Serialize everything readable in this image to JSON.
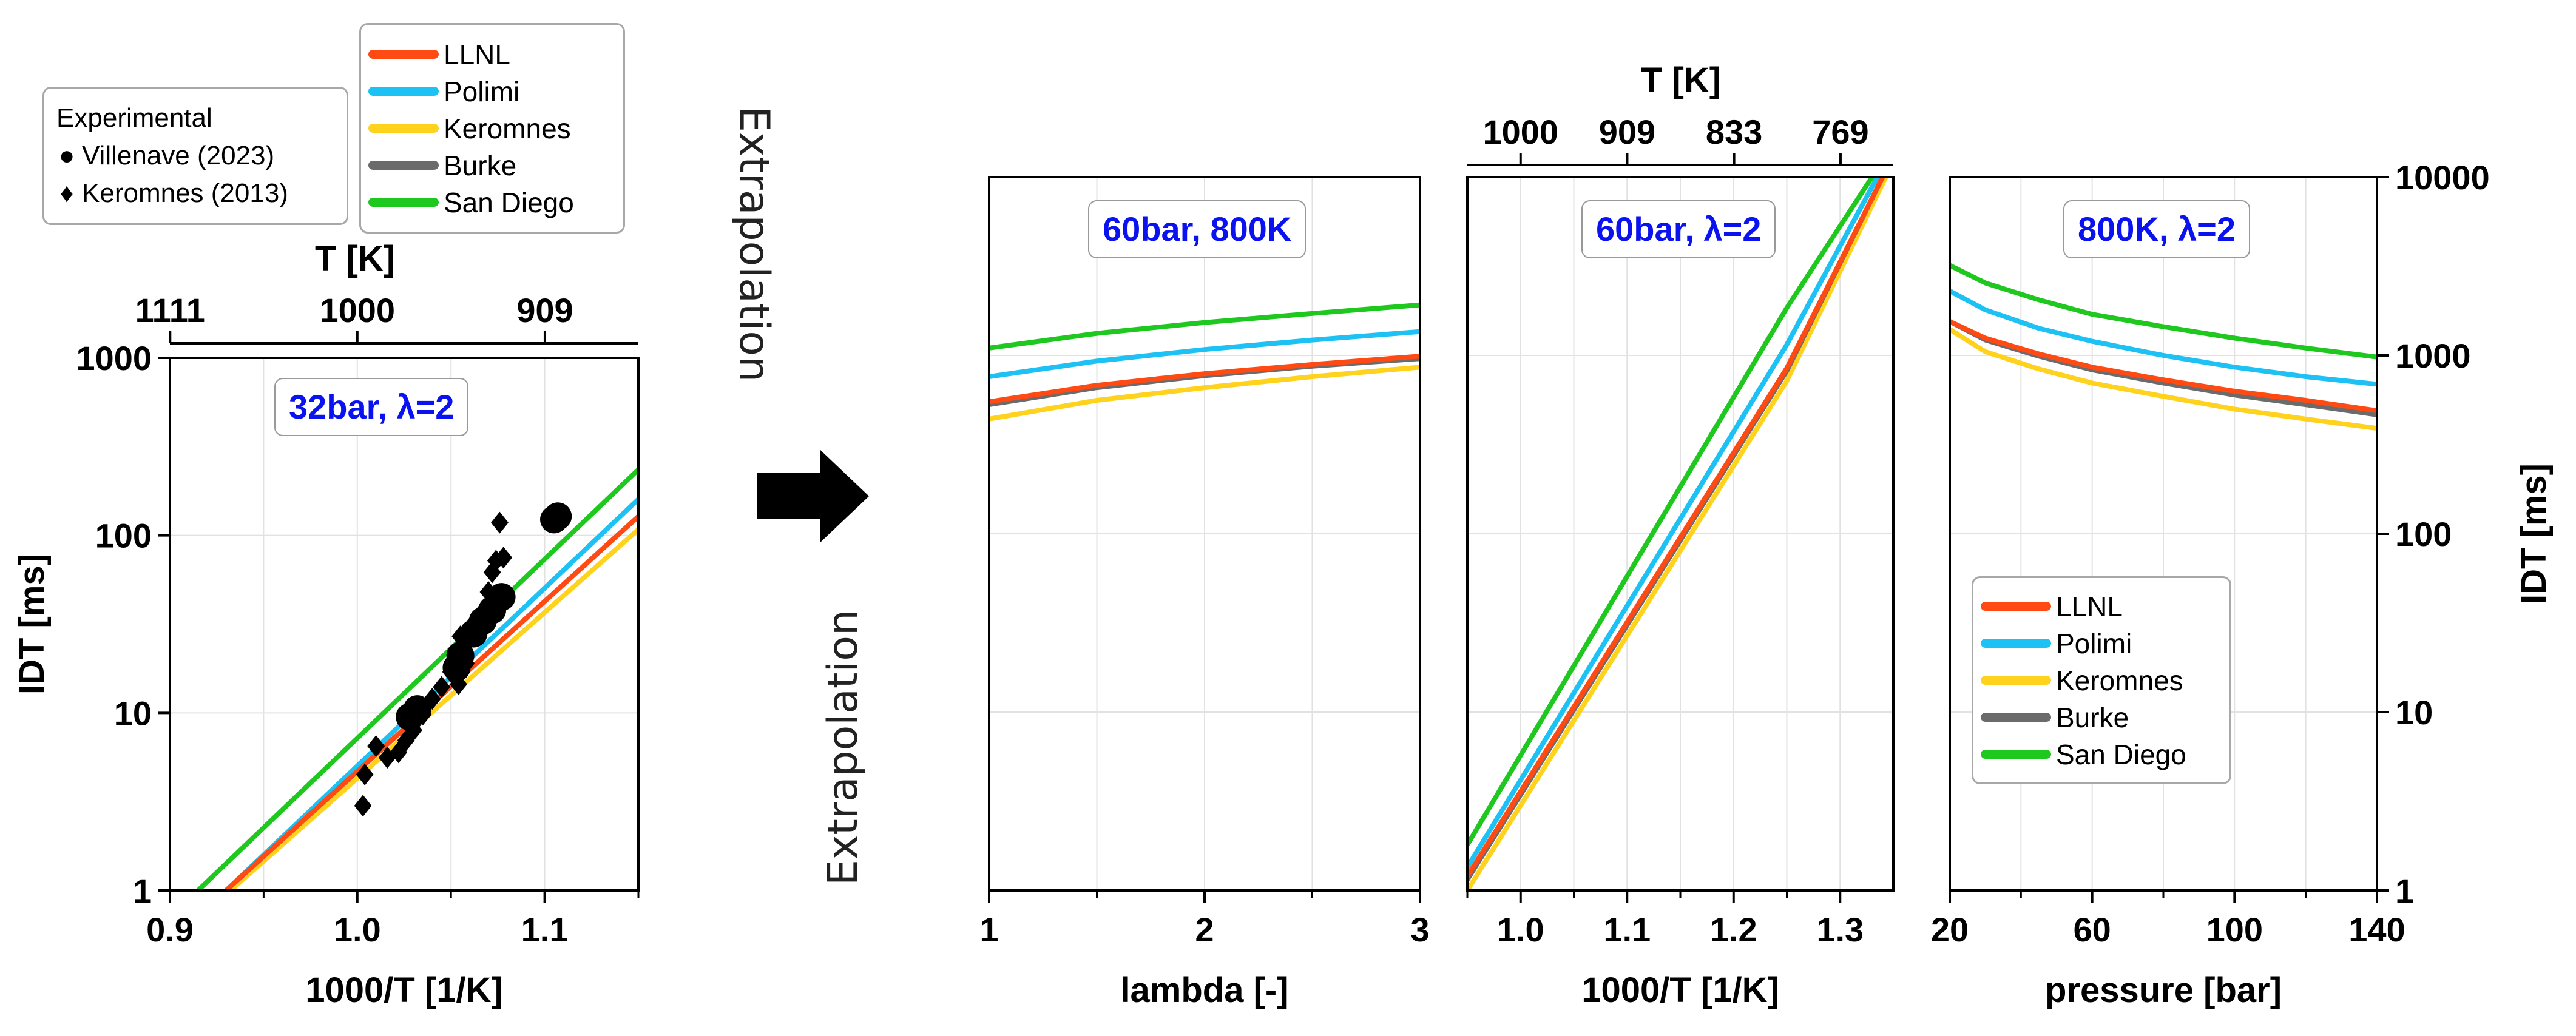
{
  "chart_data": [
    {
      "id": "left",
      "type": "line",
      "box_label": "32bar, λ=2",
      "xlabel": "1000/T [1/K]",
      "ylabel": "IDT  [ms]",
      "top_xlabel": "T [K]",
      "xlim": [
        0.9,
        1.15
      ],
      "ylim": [
        1,
        1000
      ],
      "yscale": "log",
      "xticks": [
        "0.9",
        "1.0",
        "1.1"
      ],
      "yticks": [
        "1",
        "10",
        "100",
        "1000"
      ],
      "top_ticks": [
        {
          "T": 1111,
          "label": "1111"
        },
        {
          "T": 1000,
          "label": "1000"
        },
        {
          "T": 909,
          "label": "909"
        }
      ],
      "series": [
        {
          "name": "LLNL",
          "x": [
            0.93,
            1.15
          ],
          "y": [
            1.0,
            128
          ]
        },
        {
          "name": "Polimi",
          "x": [
            0.93,
            1.15
          ],
          "y": [
            1.0,
            160
          ]
        },
        {
          "name": "Keromnes",
          "x": [
            0.93,
            1.15
          ],
          "y": [
            0.95,
            108
          ]
        },
        {
          "name": "Burke",
          "x": [
            0.93,
            1.15
          ],
          "y": [
            1.0,
            128
          ]
        },
        {
          "name": "San Diego",
          "x": [
            0.915,
            1.15
          ],
          "y": [
            1.0,
            235
          ]
        }
      ],
      "experimental": {
        "Villenave (2023)": [
          [
            1.028,
            9.5
          ],
          [
            1.032,
            10.5
          ],
          [
            1.053,
            18
          ],
          [
            1.055,
            21
          ],
          [
            1.062,
            28
          ],
          [
            1.067,
            33
          ],
          [
            1.072,
            38
          ],
          [
            1.077,
            45
          ],
          [
            1.105,
            123
          ],
          [
            1.107,
            128
          ]
        ],
        "Keromnes (2013)": [
          [
            1.003,
            3.0
          ],
          [
            1.004,
            4.5
          ],
          [
            1.01,
            6.5
          ],
          [
            1.016,
            5.6
          ],
          [
            1.022,
            6.0
          ],
          [
            1.026,
            7.0
          ],
          [
            1.03,
            8.0
          ],
          [
            1.035,
            9.8
          ],
          [
            1.04,
            12
          ],
          [
            1.045,
            14
          ],
          [
            1.05,
            17
          ],
          [
            1.054,
            14.5
          ],
          [
            1.058,
            19
          ],
          [
            1.055,
            27
          ],
          [
            1.06,
            30
          ],
          [
            1.065,
            35
          ],
          [
            1.07,
            48
          ],
          [
            1.072,
            62
          ],
          [
            1.074,
            72
          ],
          [
            1.078,
            75
          ],
          [
            1.076,
            118
          ]
        ]
      }
    },
    {
      "id": "lambda",
      "type": "line",
      "box_label": "60bar, 800K",
      "xlabel": "lambda [-]",
      "xlim": [
        1,
        3
      ],
      "ylim": [
        1,
        10000
      ],
      "yscale": "log",
      "xticks": [
        "1",
        "2",
        "3"
      ],
      "series": [
        {
          "name": "LLNL",
          "x": [
            1,
            1.5,
            2,
            2.5,
            3
          ],
          "y": [
            550,
            680,
            790,
            890,
            990
          ]
        },
        {
          "name": "Polimi",
          "x": [
            1,
            1.5,
            2,
            2.5,
            3
          ],
          "y": [
            760,
            930,
            1080,
            1220,
            1360
          ]
        },
        {
          "name": "Keromnes",
          "x": [
            1,
            1.5,
            2,
            2.5,
            3
          ],
          "y": [
            440,
            560,
            660,
            760,
            860
          ]
        },
        {
          "name": "Burke",
          "x": [
            1,
            1.5,
            2,
            2.5,
            3
          ],
          "y": [
            530,
            660,
            770,
            870,
            960
          ]
        },
        {
          "name": "San Diego",
          "x": [
            1,
            1.5,
            2,
            2.5,
            3
          ],
          "y": [
            1100,
            1330,
            1530,
            1720,
            1920
          ]
        }
      ]
    },
    {
      "id": "invT",
      "type": "line",
      "box_label": "60bar, λ=2",
      "xlabel": "1000/T [1/K]",
      "top_xlabel": "T [K]",
      "xlim": [
        0.95,
        1.35
      ],
      "ylim": [
        1,
        10000
      ],
      "yscale": "log",
      "xticks": [
        "1.0",
        "1.1",
        "1.2",
        "1.3"
      ],
      "top_ticks": [
        {
          "T": 1000,
          "label": "1000"
        },
        {
          "T": 909,
          "label": "909"
        },
        {
          "T": 833,
          "label": "833"
        },
        {
          "T": 769,
          "label": "769"
        }
      ],
      "series": [
        {
          "name": "LLNL",
          "x": [
            0.95,
            1.25,
            1.34
          ],
          "y": [
            1.2,
            850,
            10000
          ]
        },
        {
          "name": "Polimi",
          "x": [
            0.95,
            1.25,
            1.335
          ],
          "y": [
            1.35,
            1150,
            10000
          ]
        },
        {
          "name": "Keromnes",
          "x": [
            0.95,
            1.25,
            1.343
          ],
          "y": [
            1.0,
            720,
            10000
          ]
        },
        {
          "name": "Burke",
          "x": [
            0.95,
            1.25,
            1.34
          ],
          "y": [
            1.15,
            820,
            10000
          ]
        },
        {
          "name": "San Diego",
          "x": [
            0.95,
            1.25,
            1.33
          ],
          "y": [
            1.8,
            1850,
            10000
          ]
        }
      ]
    },
    {
      "id": "pressure",
      "type": "line",
      "box_label": "800K, λ=2",
      "xlabel": "pressure [bar]",
      "ylabel": "IDT [ms]",
      "xlim": [
        20,
        140
      ],
      "ylim": [
        1,
        10000
      ],
      "yscale": "log",
      "xticks": [
        "20",
        "60",
        "100",
        "140"
      ],
      "yticks": [
        "1",
        "10",
        "100",
        "1000",
        "10000"
      ],
      "series": [
        {
          "name": "LLNL",
          "x": [
            20,
            30,
            45,
            60,
            80,
            100,
            120,
            140
          ],
          "y": [
            1550,
            1250,
            1020,
            860,
            730,
            630,
            560,
            490
          ]
        },
        {
          "name": "Polimi",
          "x": [
            20,
            30,
            45,
            60,
            80,
            100,
            120,
            140
          ],
          "y": [
            2300,
            1800,
            1420,
            1200,
            1000,
            860,
            760,
            690
          ]
        },
        {
          "name": "Keromnes",
          "x": [
            20,
            30,
            45,
            60,
            80,
            100,
            120,
            140
          ],
          "y": [
            1400,
            1050,
            840,
            700,
            590,
            500,
            440,
            390
          ]
        },
        {
          "name": "Burke",
          "x": [
            20,
            30,
            45,
            60,
            80,
            100,
            120,
            140
          ],
          "y": [
            1550,
            1220,
            990,
            830,
            700,
            600,
            530,
            465
          ]
        },
        {
          "name": "San Diego",
          "x": [
            20,
            30,
            45,
            60,
            80,
            100,
            120,
            140
          ],
          "y": [
            3200,
            2550,
            2050,
            1700,
            1450,
            1250,
            1100,
            980
          ]
        }
      ]
    }
  ],
  "colors": {
    "LLNL": "#ff4b13",
    "Polimi": "#1ec1f3",
    "Keromnes": "#ffd21e",
    "Burke": "#6b6b6b",
    "San Diego": "#1ec81e",
    "box_label_text": "#0a12f0"
  },
  "legend": {
    "items": [
      "LLNL",
      "Polimi",
      "Keromnes",
      "Burke",
      "San Diego"
    ]
  },
  "experimental_legend": {
    "title": "Experimental",
    "items": [
      {
        "symbol": "●",
        "label": "Villenave (2023)"
      },
      {
        "symbol": "♦",
        "label": "Keromnes (2013)"
      }
    ]
  },
  "annotations": {
    "extrapolation_top": "Extrapolation",
    "extrapolation_bottom": "Extrapolation",
    "arrow": "right-arrow"
  }
}
